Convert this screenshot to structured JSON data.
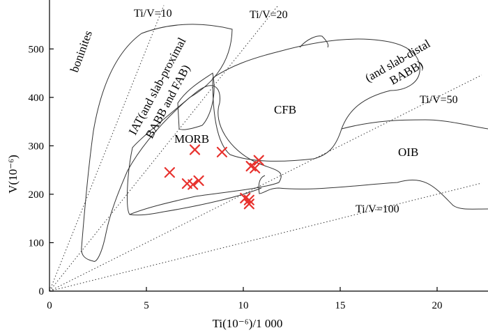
{
  "chart_data": {
    "type": "scatter",
    "xlabel": "Ti(10⁻⁶)/1 000",
    "ylabel": "V(10⁻⁶)",
    "xlim": [
      0,
      22.3
    ],
    "ylim": [
      0,
      590
    ],
    "x_ticks": [
      "0",
      "5",
      "10",
      "15",
      "20"
    ],
    "y_ticks": [
      "0",
      "100",
      "200",
      "300",
      "400",
      "500"
    ],
    "grid": false,
    "marker": "x",
    "marker_color": "#e8322e",
    "points": [
      {
        "x": 6.2,
        "y": 245
      },
      {
        "x": 7.1,
        "y": 222
      },
      {
        "x": 7.4,
        "y": 220
      },
      {
        "x": 7.7,
        "y": 228
      },
      {
        "x": 7.5,
        "y": 292
      },
      {
        "x": 8.9,
        "y": 287
      },
      {
        "x": 10.1,
        "y": 192
      },
      {
        "x": 10.3,
        "y": 188
      },
      {
        "x": 10.3,
        "y": 180
      },
      {
        "x": 10.4,
        "y": 258
      },
      {
        "x": 10.6,
        "y": 254
      },
      {
        "x": 10.8,
        "y": 270
      }
    ],
    "ratio_lines": [
      {
        "label": "Ti/V=10",
        "ratio": 10
      },
      {
        "label": "Ti/V=20",
        "ratio": 20
      },
      {
        "label": "Ti/V=50",
        "ratio": 50
      },
      {
        "label": "Ti/V=100",
        "ratio": 100
      }
    ],
    "fields": [
      {
        "label": "boninites"
      },
      {
        "label": "IAT(and slab-proximal",
        "label2": "BABB and FAB)"
      },
      {
        "label": "(and slab-distal",
        "label2": "BABB)"
      },
      {
        "label": "MORB"
      },
      {
        "label": "CFB"
      },
      {
        "label": "OIB"
      }
    ]
  }
}
